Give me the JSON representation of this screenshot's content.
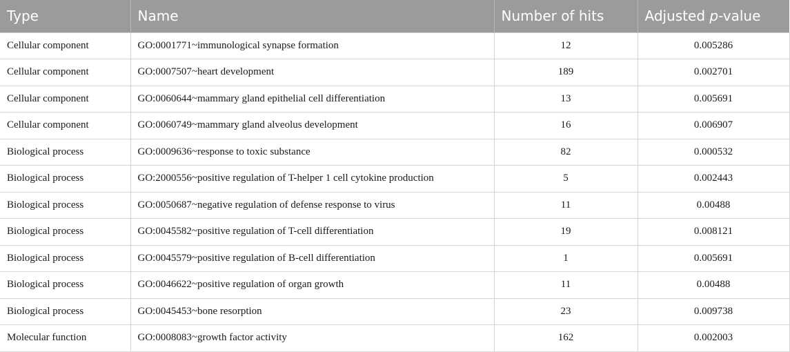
{
  "table": {
    "headers": {
      "type": "Type",
      "name": "Name",
      "hits": "Number of hits",
      "pval_prefix": "Adjusted ",
      "pval_italic": "p",
      "pval_suffix": "-value"
    },
    "rows": [
      {
        "type": "Cellular component",
        "name": "GO:0001771~immunological synapse formation",
        "hits": "12",
        "pval": "0.005286"
      },
      {
        "type": "Cellular component",
        "name": "GO:0007507~heart development",
        "hits": "189",
        "pval": "0.002701"
      },
      {
        "type": "Cellular component",
        "name": "GO:0060644~mammary gland epithelial cell differentiation",
        "hits": "13",
        "pval": "0.005691"
      },
      {
        "type": "Cellular component",
        "name": "GO:0060749~mammary gland alveolus development",
        "hits": "16",
        "pval": "0.006907"
      },
      {
        "type": "Biological process",
        "name": "GO:0009636~response to toxic substance",
        "hits": "82",
        "pval": "0.000532"
      },
      {
        "type": "Biological process",
        "name": "GO:2000556~positive regulation of T-helper 1 cell cytokine production",
        "hits": "5",
        "pval": "0.002443"
      },
      {
        "type": "Biological process",
        "name": "GO:0050687~negative regulation of defense response to virus",
        "hits": "11",
        "pval": "0.00488"
      },
      {
        "type": "Biological process",
        "name": "GO:0045582~positive regulation of T-cell differentiation",
        "hits": "19",
        "pval": "0.008121"
      },
      {
        "type": "Biological process",
        "name": "GO:0045579~positive regulation of B-cell differentiation",
        "hits": "1",
        "pval": "0.005691"
      },
      {
        "type": "Biological process",
        "name": "GO:0046622~positive regulation of organ growth",
        "hits": "11",
        "pval": "0.00488"
      },
      {
        "type": "Biological process",
        "name": "GO:0045453~bone resorption",
        "hits": "23",
        "pval": "0.009738"
      },
      {
        "type": "Molecular function",
        "name": "GO:0008083~growth factor activity",
        "hits": "162",
        "pval": "0.002003"
      }
    ]
  }
}
